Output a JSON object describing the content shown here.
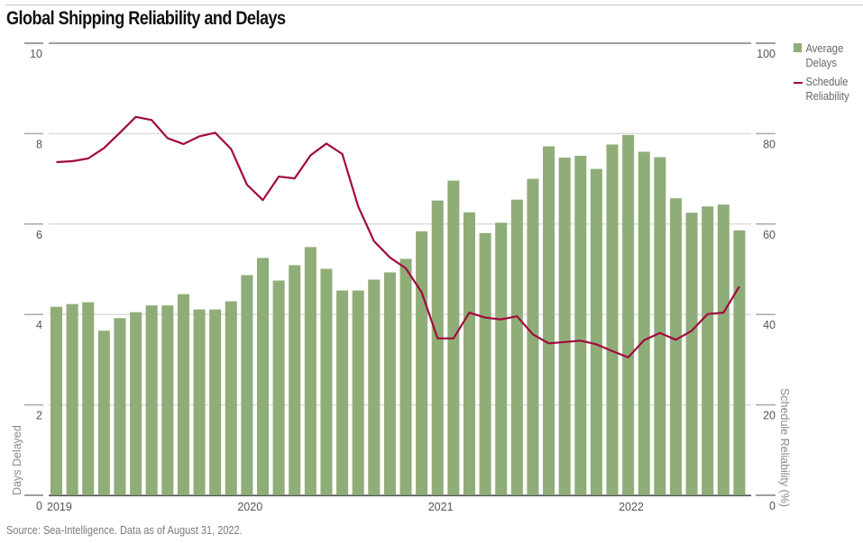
{
  "header": {
    "title": "Global Shipping Reliability and Delays"
  },
  "footer": {
    "source": "Source: Sea-Intelligence. Data as of August 31, 2022."
  },
  "legend": {
    "items": [
      {
        "label": "Average Delays",
        "color": "#8fad78",
        "kind": "bar"
      },
      {
        "label": "Schedule Reliability",
        "color": "#a10a3c",
        "kind": "line"
      }
    ]
  },
  "chart_data": {
    "type": "bar+line",
    "title": "Global Shipping Reliability and Delays",
    "xlabel": "",
    "ylabel": "Days Delayed",
    "y2label": "Schedule Reliability (%)",
    "ylim": [
      0,
      10
    ],
    "y2lim": [
      0,
      100
    ],
    "yticks": [
      "0",
      "2",
      "4",
      "6",
      "8",
      "10"
    ],
    "y2ticks": [
      "0",
      "20",
      "40",
      "60",
      "80",
      "100"
    ],
    "xtick_labels": [
      {
        "label": "2019",
        "index": 0
      },
      {
        "label": "2020",
        "index": 12
      },
      {
        "label": "2021",
        "index": 24
      },
      {
        "label": "2022",
        "index": 36
      }
    ],
    "grid": true,
    "legend_position": "right",
    "categories": [
      "2019-01",
      "2019-02",
      "2019-03",
      "2019-04",
      "2019-05",
      "2019-06",
      "2019-07",
      "2019-08",
      "2019-09",
      "2019-10",
      "2019-11",
      "2019-12",
      "2020-01",
      "2020-02",
      "2020-03",
      "2020-04",
      "2020-05",
      "2020-06",
      "2020-07",
      "2020-08",
      "2020-09",
      "2020-10",
      "2020-11",
      "2020-12",
      "2021-01",
      "2021-02",
      "2021-03",
      "2021-04",
      "2021-05",
      "2021-06",
      "2021-07",
      "2021-08",
      "2021-09",
      "2021-10",
      "2021-11",
      "2021-12",
      "2022-01",
      "2022-02",
      "2022-03",
      "2022-04",
      "2022-05",
      "2022-06",
      "2022-07",
      "2022-08"
    ],
    "series": [
      {
        "name": "Average Delays",
        "type": "bar",
        "axis": "left",
        "color": "#8fad78",
        "values": [
          4.17,
          4.23,
          4.27,
          3.64,
          3.92,
          4.05,
          4.2,
          4.2,
          4.45,
          4.11,
          4.11,
          4.29,
          4.87,
          5.25,
          4.75,
          5.09,
          5.49,
          5.01,
          4.53,
          4.53,
          4.77,
          4.93,
          5.23,
          5.84,
          6.52,
          6.96,
          6.26,
          5.8,
          6.03,
          6.54,
          7.0,
          7.72,
          7.47,
          7.51,
          7.22,
          7.76,
          7.97,
          7.6,
          7.48,
          6.57,
          6.25,
          6.39,
          6.43,
          5.86
        ]
      },
      {
        "name": "Schedule Reliability",
        "type": "line",
        "axis": "right",
        "color": "#a10a3c",
        "values": [
          73.7,
          73.9,
          74.5,
          76.8,
          80.2,
          83.7,
          83.0,
          79.0,
          77.7,
          79.4,
          80.2,
          76.6,
          68.7,
          65.3,
          70.5,
          70.1,
          75.2,
          77.8,
          75.5,
          63.9,
          56.2,
          52.6,
          50.2,
          44.9,
          34.7,
          34.7,
          40.4,
          39.3,
          38.9,
          39.6,
          35.6,
          33.6,
          33.9,
          34.2,
          33.4,
          31.9,
          30.5,
          34.3,
          35.9,
          34.4,
          36.4,
          40.1,
          40.4,
          46.2
        ]
      }
    ]
  }
}
